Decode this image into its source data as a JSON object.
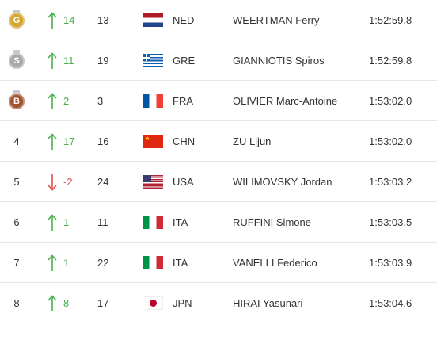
{
  "colors": {
    "gold": "#d4a52f",
    "silver": "#a9a9a9",
    "bronze": "#a0522d",
    "up": "#4caf50",
    "down": "#e05151"
  },
  "rows": [
    {
      "rank": "",
      "medal": "gold",
      "medal_letter": "G",
      "direction": "up",
      "delta": "14",
      "prev": "13",
      "flag": "ned",
      "noc": "NED",
      "name": "WEERTMAN Ferry",
      "time": "1:52:59.8"
    },
    {
      "rank": "",
      "medal": "silver",
      "medal_letter": "S",
      "direction": "up",
      "delta": "11",
      "prev": "19",
      "flag": "gre",
      "noc": "GRE",
      "name": "GIANNIOTIS Spiros",
      "time": "1:52:59.8"
    },
    {
      "rank": "",
      "medal": "bronze",
      "medal_letter": "B",
      "direction": "up",
      "delta": "2",
      "prev": "3",
      "flag": "fra",
      "noc": "FRA",
      "name": "OLIVIER Marc-Antoine",
      "time": "1:53:02.0"
    },
    {
      "rank": "4",
      "medal": "",
      "medal_letter": "",
      "direction": "up",
      "delta": "17",
      "prev": "16",
      "flag": "chn",
      "noc": "CHN",
      "name": "ZU Lijun",
      "time": "1:53:02.0"
    },
    {
      "rank": "5",
      "medal": "",
      "medal_letter": "",
      "direction": "down",
      "delta": "-2",
      "prev": "24",
      "flag": "usa",
      "noc": "USA",
      "name": "WILIMOVSKY Jordan",
      "time": "1:53:03.2"
    },
    {
      "rank": "6",
      "medal": "",
      "medal_letter": "",
      "direction": "up",
      "delta": "1",
      "prev": "11",
      "flag": "ita",
      "noc": "ITA",
      "name": "RUFFINI Simone",
      "time": "1:53:03.5"
    },
    {
      "rank": "7",
      "medal": "",
      "medal_letter": "",
      "direction": "up",
      "delta": "1",
      "prev": "22",
      "flag": "ita",
      "noc": "ITA",
      "name": "VANELLI Federico",
      "time": "1:53:03.9"
    },
    {
      "rank": "8",
      "medal": "",
      "medal_letter": "",
      "direction": "up",
      "delta": "8",
      "prev": "17",
      "flag": "jpn",
      "noc": "JPN",
      "name": "HIRAI Yasunari",
      "time": "1:53:04.6"
    }
  ]
}
